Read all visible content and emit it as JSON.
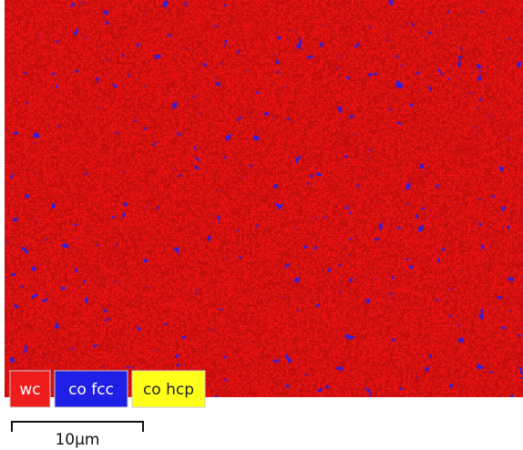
{
  "legend": [
    {
      "label": "wc"
    },
    {
      "label": "co fcc"
    },
    {
      "label": "co hcp"
    }
  ],
  "scale_bar": {
    "label": "10μm"
  }
}
